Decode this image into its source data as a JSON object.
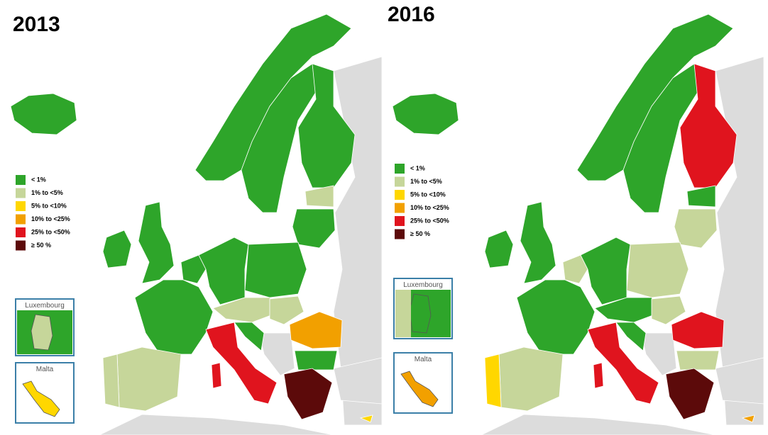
{
  "maps": [
    {
      "title": "2013",
      "legend": [
        {
          "label": "< 1%",
          "color": "#2ea52a"
        },
        {
          "label": "1% to <5%",
          "color": "#c6d69a"
        },
        {
          "label": "5% to <10%",
          "color": "#ffd700"
        },
        {
          "label": "10% to <25%",
          "color": "#f2a000"
        },
        {
          "label": "25% to <50%",
          "color": "#e0141e"
        },
        {
          "label": "≥ 50 %",
          "color": "#5c0a0a"
        }
      ],
      "insets": [
        "Luxembourg",
        "Malta"
      ]
    },
    {
      "title": "2016",
      "legend": [
        {
          "label": "< 1%",
          "color": "#2ea52a"
        },
        {
          "label": "1% to <5%",
          "color": "#c6d69a"
        },
        {
          "label": "5% to <10%",
          "color": "#ffd700"
        },
        {
          "label": "10% to <25%",
          "color": "#f2a000"
        },
        {
          "label": "25% to <50%",
          "color": "#e0141e"
        },
        {
          "label": "≥ 50 %",
          "color": "#5c0a0a"
        }
      ],
      "insets": [
        "Luxembourg",
        "Malta"
      ]
    }
  ]
}
